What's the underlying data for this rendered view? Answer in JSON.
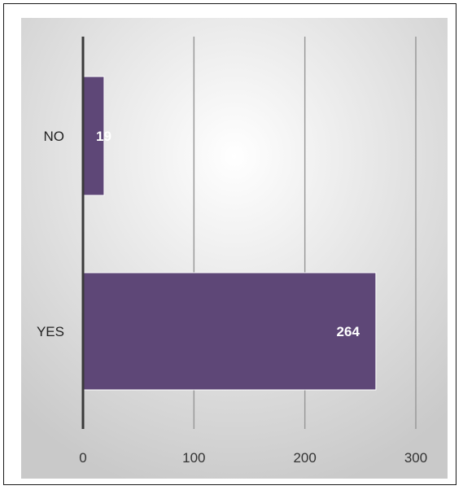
{
  "chart_data": {
    "type": "bar",
    "orientation": "horizontal",
    "categories": [
      "NO",
      "YES"
    ],
    "values": [
      19,
      264
    ],
    "data_labels": [
      "19",
      "264"
    ],
    "xlim": [
      0,
      300
    ],
    "x_ticks": [
      0,
      100,
      200,
      300
    ],
    "x_tick_labels": [
      "0",
      "100",
      "200",
      "300"
    ],
    "title": "",
    "xlabel": "",
    "ylabel": "",
    "grid": true,
    "legend": "none",
    "colors": {
      "bar": "#5e4777",
      "bar_edge": "#ffffff",
      "gridline": "#9a9a9a",
      "axis": "#3a3a3a",
      "background_center": "#ffffff",
      "background_edge": "#c9c9c9"
    }
  }
}
